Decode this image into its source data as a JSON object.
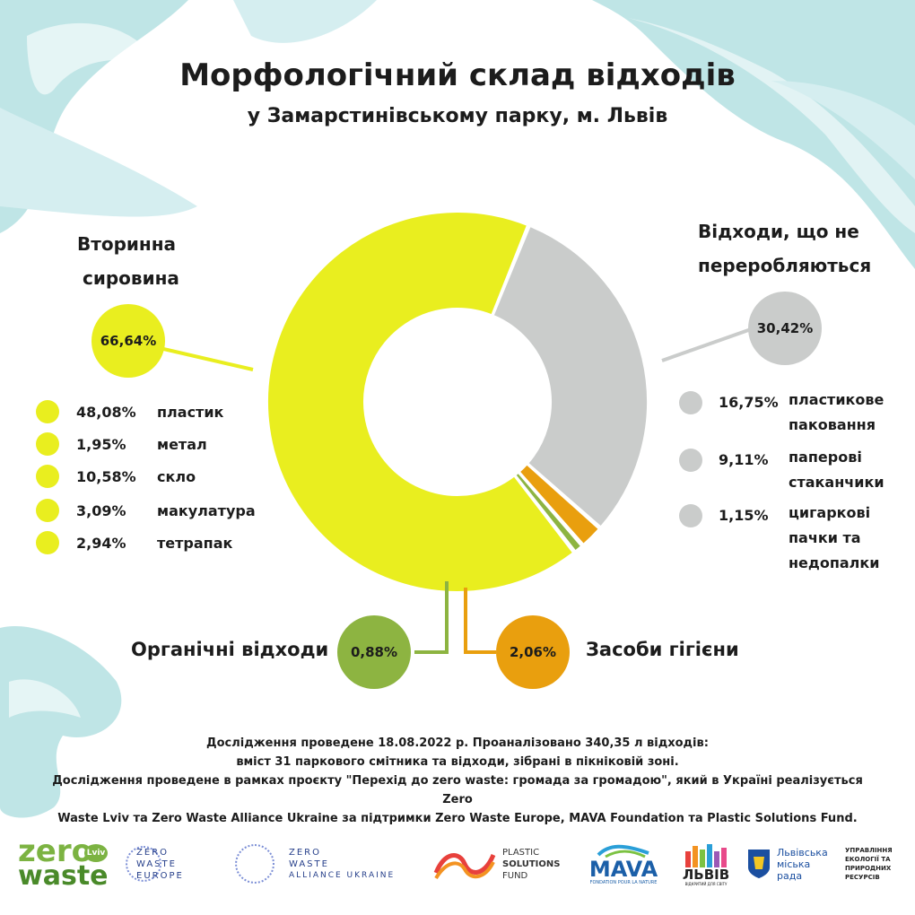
{
  "header": {
    "title": "Морфологічний склад відходів",
    "subtitle": "у Замарстинівському парку, м. Львів"
  },
  "chart_data": {
    "type": "pie",
    "title": "Морфологічний склад відходів у Замарстинівському парку, м. Львів",
    "categories": [
      "Вторинна сировина",
      "Відходи, що не переробляються",
      "Засоби гігієни",
      "Органічні відходи"
    ],
    "values": [
      66.64,
      30.42,
      2.06,
      0.88
    ],
    "value_labels": [
      "66,64%",
      "30,42%",
      "2,06%",
      "0,88%"
    ],
    "colors": [
      "#e9ee1f",
      "#cacccb",
      "#e99f0e",
      "#8db441"
    ],
    "subcategories": {
      "Вторинна сировина": [
        {
          "value": 48.08,
          "value_label": "48,08%",
          "label": "пластик"
        },
        {
          "value": 1.95,
          "value_label": "1,95%",
          "label": "метал"
        },
        {
          "value": 10.58,
          "value_label": "10,58%",
          "label": "скло"
        },
        {
          "value": 3.09,
          "value_label": "3,09%",
          "label": "макулатура"
        },
        {
          "value": 2.94,
          "value_label": "2,94%",
          "label": "тетрапак"
        }
      ],
      "Відходи, що не переробляються": [
        {
          "value": 16.75,
          "value_label": "16,75%",
          "label": "пластикове паковання"
        },
        {
          "value": 9.11,
          "value_label": "9,11%",
          "label": "паперові стаканчики"
        },
        {
          "value": 1.15,
          "value_label": "1,15%",
          "label": "цигаркові пачки та недопалки"
        }
      ]
    }
  },
  "labels": {
    "recyclables_line1": "Вторинна",
    "recyclables_line2": "сировина",
    "recyclables_pct": "66,64%",
    "nonrecyclable_line1": "Відходи, що не",
    "nonrecyclable_line2": "переробляються",
    "nonrecyclable_pct": "30,42%",
    "organic": "Органічні відходи",
    "organic_pct": "0,88%",
    "hygiene": "Засоби гігієни",
    "hygiene_pct": "2,06%"
  },
  "left_list": [
    {
      "pct": "48,08%",
      "label": "пластик"
    },
    {
      "pct": "1,95%",
      "label": "метал"
    },
    {
      "pct": "10,58%",
      "label": "скло"
    },
    {
      "pct": "3,09%",
      "label": "макулатура"
    },
    {
      "pct": "2,94%",
      "label": "тетрапак"
    }
  ],
  "right_list": [
    {
      "pct": "16,75%",
      "line1": "пластикове",
      "line2": "паковання",
      "line3": ""
    },
    {
      "pct": "9,11%",
      "line1": "паперові",
      "line2": "стаканчики",
      "line3": ""
    },
    {
      "pct": "1,15%",
      "line1": "цигаркові",
      "line2": "пачки та",
      "line3": "недопалки"
    }
  ],
  "footer": {
    "line1": "Дослідження проведене 18.08.2022 р. Проаналізовано 340,35 л відходів:",
    "line2": "вміст 31 паркового смітника та відходи, зібрані в пікніковій зоні.",
    "line3": "Дослідження проведене в рамках проєкту \"Перехід до zero waste: громада за громадою\", який в Україні реалізується Zero",
    "line4": "Waste Lviv та Zero Waste Alliance Ukraine за підтримки Zero Waste Europe, MAVA Foundation та Plastic Solutions Fund."
  },
  "logos": {
    "zw_lviv_1": "zero",
    "zw_lviv_2": "waste",
    "zw_lviv_3": "Lviv",
    "zwe_1": "ZERO",
    "zwe_2": "WASTE",
    "zwe_3": "EUROPE",
    "zwau_1": "ZERO",
    "zwau_2": "WASTE",
    "zwau_3": "ALLIANCE UKRAINE",
    "psf_1": "PLASTIC",
    "psf_2": "SOLUTIONS",
    "psf_3": "FUND",
    "mava_1": "MAVA",
    "mava_2": "FONDATION POUR LA NATURE",
    "lviv_1": "ЛЬВІВ",
    "lviv_2": "ВІДКРИТИЙ ДЛЯ СВІТУ",
    "lmr_1": "Львівська",
    "lmr_2": "міська",
    "lmr_3": "рада",
    "dept_1": "УПРАВЛІННЯ",
    "dept_2": "ЕКОЛОГІЇ ТА",
    "dept_3": "ПРИРОДНИХ",
    "dept_4": "РЕСУРСІВ"
  }
}
